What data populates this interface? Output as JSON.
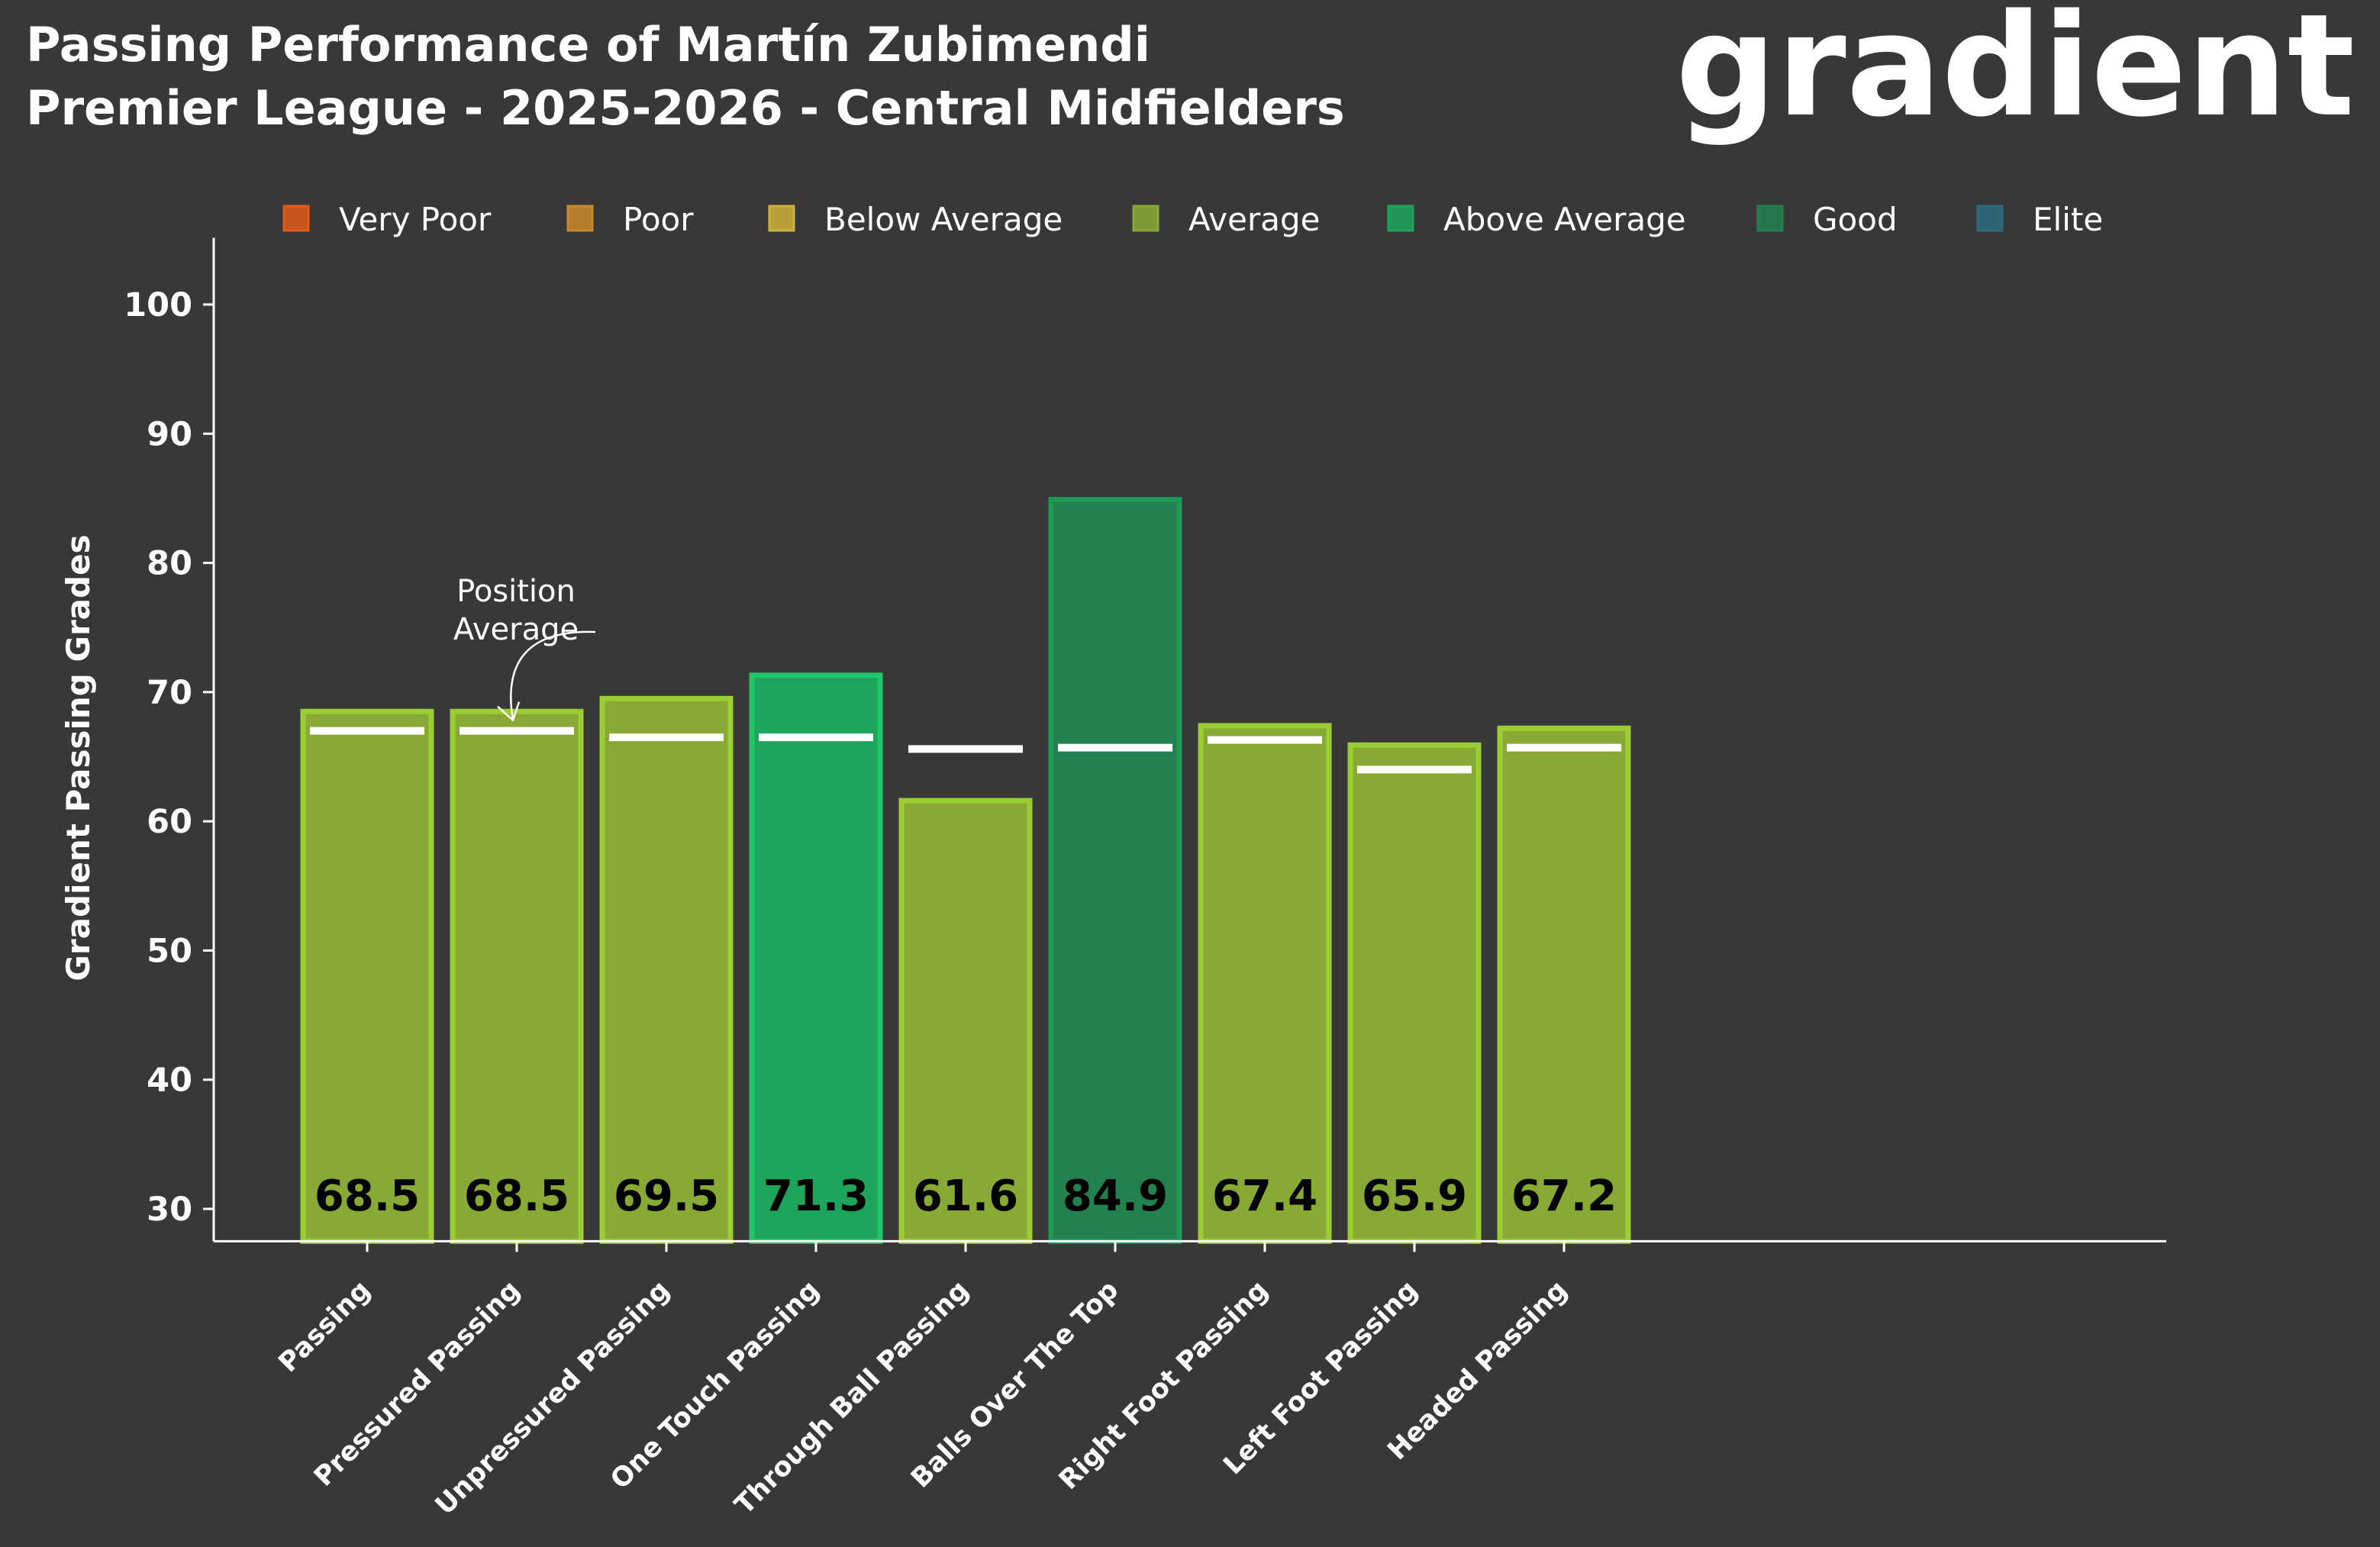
{
  "chart_data": {
    "type": "bar",
    "title": "Passing Performance of Martín Zubimendi",
    "subtitle": "Premier League - 2025-2026 - Central Midfielders",
    "brand": "gradient",
    "ylabel": "Gradient Passing Grades",
    "xlabel": "",
    "ylim": [
      27.5,
      102.5
    ],
    "yticks": [
      30,
      40,
      50,
      60,
      70,
      80,
      90,
      100
    ],
    "grid": false,
    "legend_position": "top",
    "legend": [
      {
        "label": "Very Poor",
        "color": "#E35A1A"
      },
      {
        "label": "Poor",
        "color": "#C98A2C"
      },
      {
        "label": "Below Average",
        "color": "#CFB23A"
      },
      {
        "label": "Average",
        "color": "#88AA35"
      },
      {
        "label": "Above Average",
        "color": "#1DA65B"
      },
      {
        "label": "Good",
        "color": "#23804F"
      },
      {
        "label": "Elite",
        "color": "#2C6B7E"
      }
    ],
    "annotation": {
      "line1": "Position",
      "line2": "Average",
      "target": "Pressured Passing"
    },
    "categories": [
      "Passing",
      "Pressured Passing",
      "Unpressured Passing",
      "One Touch Passing",
      "Through Ball Passing",
      "Balls Over The Top",
      "Right Foot Passing",
      "Left Foot Passing",
      "Headed Passing"
    ],
    "groups": [
      0,
      1,
      1,
      2,
      2,
      2,
      3,
      3,
      3
    ],
    "series": [
      {
        "name": "Grade",
        "values": [
          68.5,
          68.5,
          69.5,
          71.3,
          61.6,
          84.9,
          67.4,
          65.9,
          67.2
        ]
      },
      {
        "name": "Position Average",
        "values": [
          67.0,
          67.0,
          66.5,
          66.5,
          65.6,
          65.7,
          66.3,
          64.0,
          65.7
        ]
      }
    ],
    "value_labels": [
      "68.5",
      "68.5",
      "69.5",
      "71.3",
      "61.6",
      "84.9",
      "67.4",
      "65.9",
      "67.2"
    ],
    "bar_ratings": [
      "Average",
      "Average",
      "Average",
      "Above Average",
      "Average",
      "Good",
      "Average",
      "Average",
      "Average"
    ],
    "rating_styles": {
      "Average": {
        "fill": "#88AA35",
        "stroke": "#9ACD32"
      },
      "Above Average": {
        "fill": "#1DA65B",
        "stroke": "#20C76A"
      },
      "Good": {
        "fill": "#23804F",
        "stroke": "#1E9A56"
      }
    },
    "avg_line_color": "#FFFFFF"
  }
}
